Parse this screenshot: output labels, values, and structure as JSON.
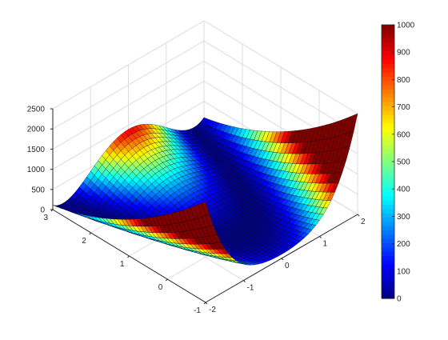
{
  "chart_data": {
    "type": "surface",
    "title": "",
    "xlabel": "",
    "ylabel": "",
    "zlabel": "",
    "function": "f(x, y) = 100*(y - x^2)^2 + (1 - x)^2",
    "x_range": [
      -2,
      2
    ],
    "y_range": [
      -1,
      3
    ],
    "z_range": [
      0,
      2500
    ],
    "x_ticks": [
      "-2",
      "-1",
      "0",
      "1",
      "2"
    ],
    "y_ticks": [
      "-1",
      "0",
      "1",
      "2",
      "3"
    ],
    "z_ticks": [
      "0",
      "500",
      "1000",
      "1500",
      "2000",
      "2500"
    ],
    "colormap": "jet",
    "color_limits": [
      0,
      1000
    ],
    "colorbar_ticks": [
      "0",
      "100",
      "200",
      "300",
      "400",
      "500",
      "600",
      "700",
      "800",
      "900",
      "1000"
    ],
    "colorbar_position": "right",
    "grid": true,
    "surface_values": [
      {
        "x": -2,
        "y": -1,
        "z": 2509
      },
      {
        "x": -2,
        "y": 3,
        "z": 109
      },
      {
        "x": 2,
        "y": -1,
        "z": 2501
      },
      {
        "x": 2,
        "y": 3,
        "z": 101
      },
      {
        "x": 0,
        "y": 3,
        "z": 901
      },
      {
        "x": 0,
        "y": -1,
        "z": 101
      },
      {
        "x": 1,
        "y": 1,
        "z": 0
      }
    ]
  },
  "colors": {
    "background": "#ffffff",
    "axis": "#262626",
    "grid": "#dcdcdc",
    "mesh_edge": "#000000"
  }
}
